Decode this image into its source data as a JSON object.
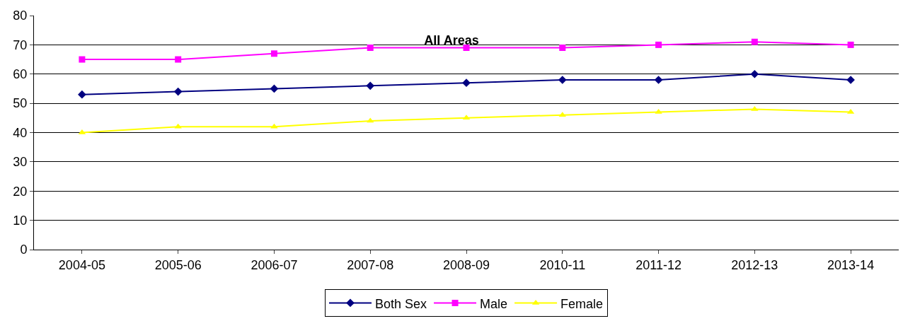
{
  "chart_data": {
    "type": "line",
    "title": "All Areas",
    "categories": [
      "2004-05",
      "2005-06",
      "2006-07",
      "2007-08",
      "2008-09",
      "2010-11",
      "2011-12",
      "2012-13",
      "2013-14"
    ],
    "series": [
      {
        "name": "Both Sex",
        "color": "#000080",
        "marker": "diamond",
        "values": [
          53,
          54,
          55,
          56,
          57,
          58,
          58,
          60,
          58
        ]
      },
      {
        "name": "Male",
        "color": "#ff00ff",
        "marker": "square",
        "values": [
          65,
          65,
          67,
          69,
          69,
          69,
          70,
          71,
          70
        ]
      },
      {
        "name": "Female",
        "color": "#ffff00",
        "marker": "triangle",
        "values": [
          40,
          42,
          42,
          44,
          45,
          46,
          47,
          48,
          47
        ]
      }
    ],
    "ylim": [
      0,
      80
    ],
    "yticks": [
      0,
      10,
      20,
      30,
      40,
      50,
      60,
      70,
      80
    ],
    "grid": "y",
    "legend": "bottom",
    "line_style": "solid"
  }
}
